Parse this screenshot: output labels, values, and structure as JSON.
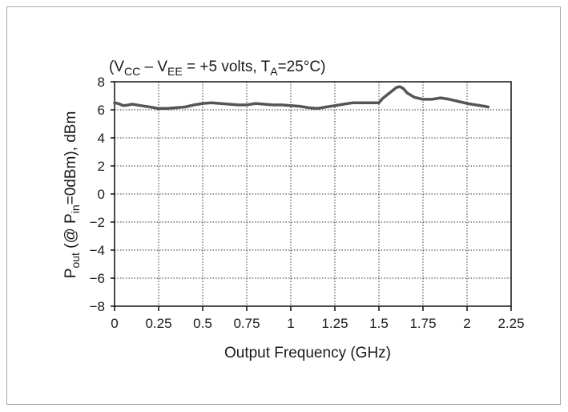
{
  "chart_data": {
    "type": "line",
    "title": {
      "open": "(V",
      "cc_sub": "CC",
      "mid": " – V",
      "ee_sub": "EE",
      "rest": " = +5 volts, T",
      "a_sub": "A",
      "end": "=25°C)"
    },
    "xlabel": "Output Frequency (GHz)",
    "ylabel": {
      "p": "P",
      "out_sub": "out",
      "mid": " (@ P",
      "in_sub": "in",
      "end": "=0dBm), dBm"
    },
    "xlim": [
      0,
      2.25
    ],
    "ylim": [
      -8,
      8
    ],
    "x_ticks": [
      "0",
      "0.25",
      "0.5",
      "0.75",
      "1",
      "1.25",
      "1.5",
      "1.75",
      "2",
      "2.25"
    ],
    "y_ticks": [
      "8",
      "6",
      "4",
      "2",
      "0",
      "−2",
      "−4",
      "−6",
      "−8"
    ],
    "grid": true,
    "line_color": "#555555",
    "series": [
      {
        "x": [
          0,
          0.02,
          0.05,
          0.08,
          0.1,
          0.15,
          0.2,
          0.25,
          0.3,
          0.35,
          0.4,
          0.45,
          0.5,
          0.55,
          0.6,
          0.65,
          0.7,
          0.75,
          0.8,
          0.85,
          0.9,
          0.95,
          1.0,
          1.05,
          1.1,
          1.15,
          1.2,
          1.25,
          1.3,
          1.35,
          1.4,
          1.45,
          1.5,
          1.52,
          1.55,
          1.58,
          1.6,
          1.62,
          1.64,
          1.66,
          1.7,
          1.75,
          1.8,
          1.85,
          1.9,
          1.95,
          2.0,
          2.05,
          2.1,
          2.12
        ],
        "y": [
          6.5,
          6.45,
          6.3,
          6.35,
          6.4,
          6.3,
          6.2,
          6.1,
          6.1,
          6.15,
          6.2,
          6.35,
          6.45,
          6.5,
          6.45,
          6.4,
          6.35,
          6.35,
          6.45,
          6.4,
          6.35,
          6.35,
          6.3,
          6.25,
          6.15,
          6.1,
          6.2,
          6.3,
          6.4,
          6.5,
          6.5,
          6.5,
          6.5,
          6.8,
          7.1,
          7.4,
          7.6,
          7.65,
          7.5,
          7.2,
          6.9,
          6.75,
          6.75,
          6.85,
          6.75,
          6.6,
          6.45,
          6.35,
          6.25,
          6.2
        ]
      }
    ]
  }
}
